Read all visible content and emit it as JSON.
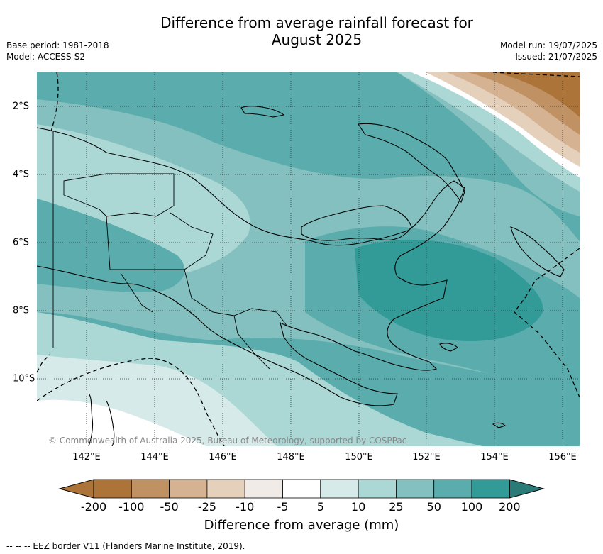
{
  "title_line1": "Difference from average rainfall forecast for",
  "title_line2": "August 2025",
  "meta": {
    "base_period": "Base period: 1981-2018",
    "model": "Model: ACCESS-S2",
    "model_run": "Model run: 19/07/2025",
    "issued": "Issued: 21/07/2025"
  },
  "lon_ticks": [
    "142°E",
    "144°E",
    "146°E",
    "148°E",
    "150°E",
    "152°E",
    "154°E",
    "156°E"
  ],
  "lat_ticks": [
    "2°S",
    "4°S",
    "6°S",
    "8°S",
    "10°S"
  ],
  "copyright": "© Commonwealth of Australia 2025, Bureau of Meteorology, supported by COSPPac",
  "colorbar": {
    "title": "Difference from average (mm)",
    "labels": [
      "-200",
      "-100",
      "-50",
      "-25",
      "-10",
      "-5",
      "5",
      "10",
      "25",
      "50",
      "100",
      "200"
    ],
    "colors": [
      "#ad7439",
      "#c09163",
      "#d4b292",
      "#e5d0bc",
      "#f0ebe7",
      "#ffffff",
      "#d6ebe9",
      "#abd7d5",
      "#84c0bf",
      "#5bacac",
      "#329b98",
      "#2a7a77"
    ]
  },
  "eez_note": "-- -- -- EEZ border V11 (Flanders Marine Institute, 2019)."
}
